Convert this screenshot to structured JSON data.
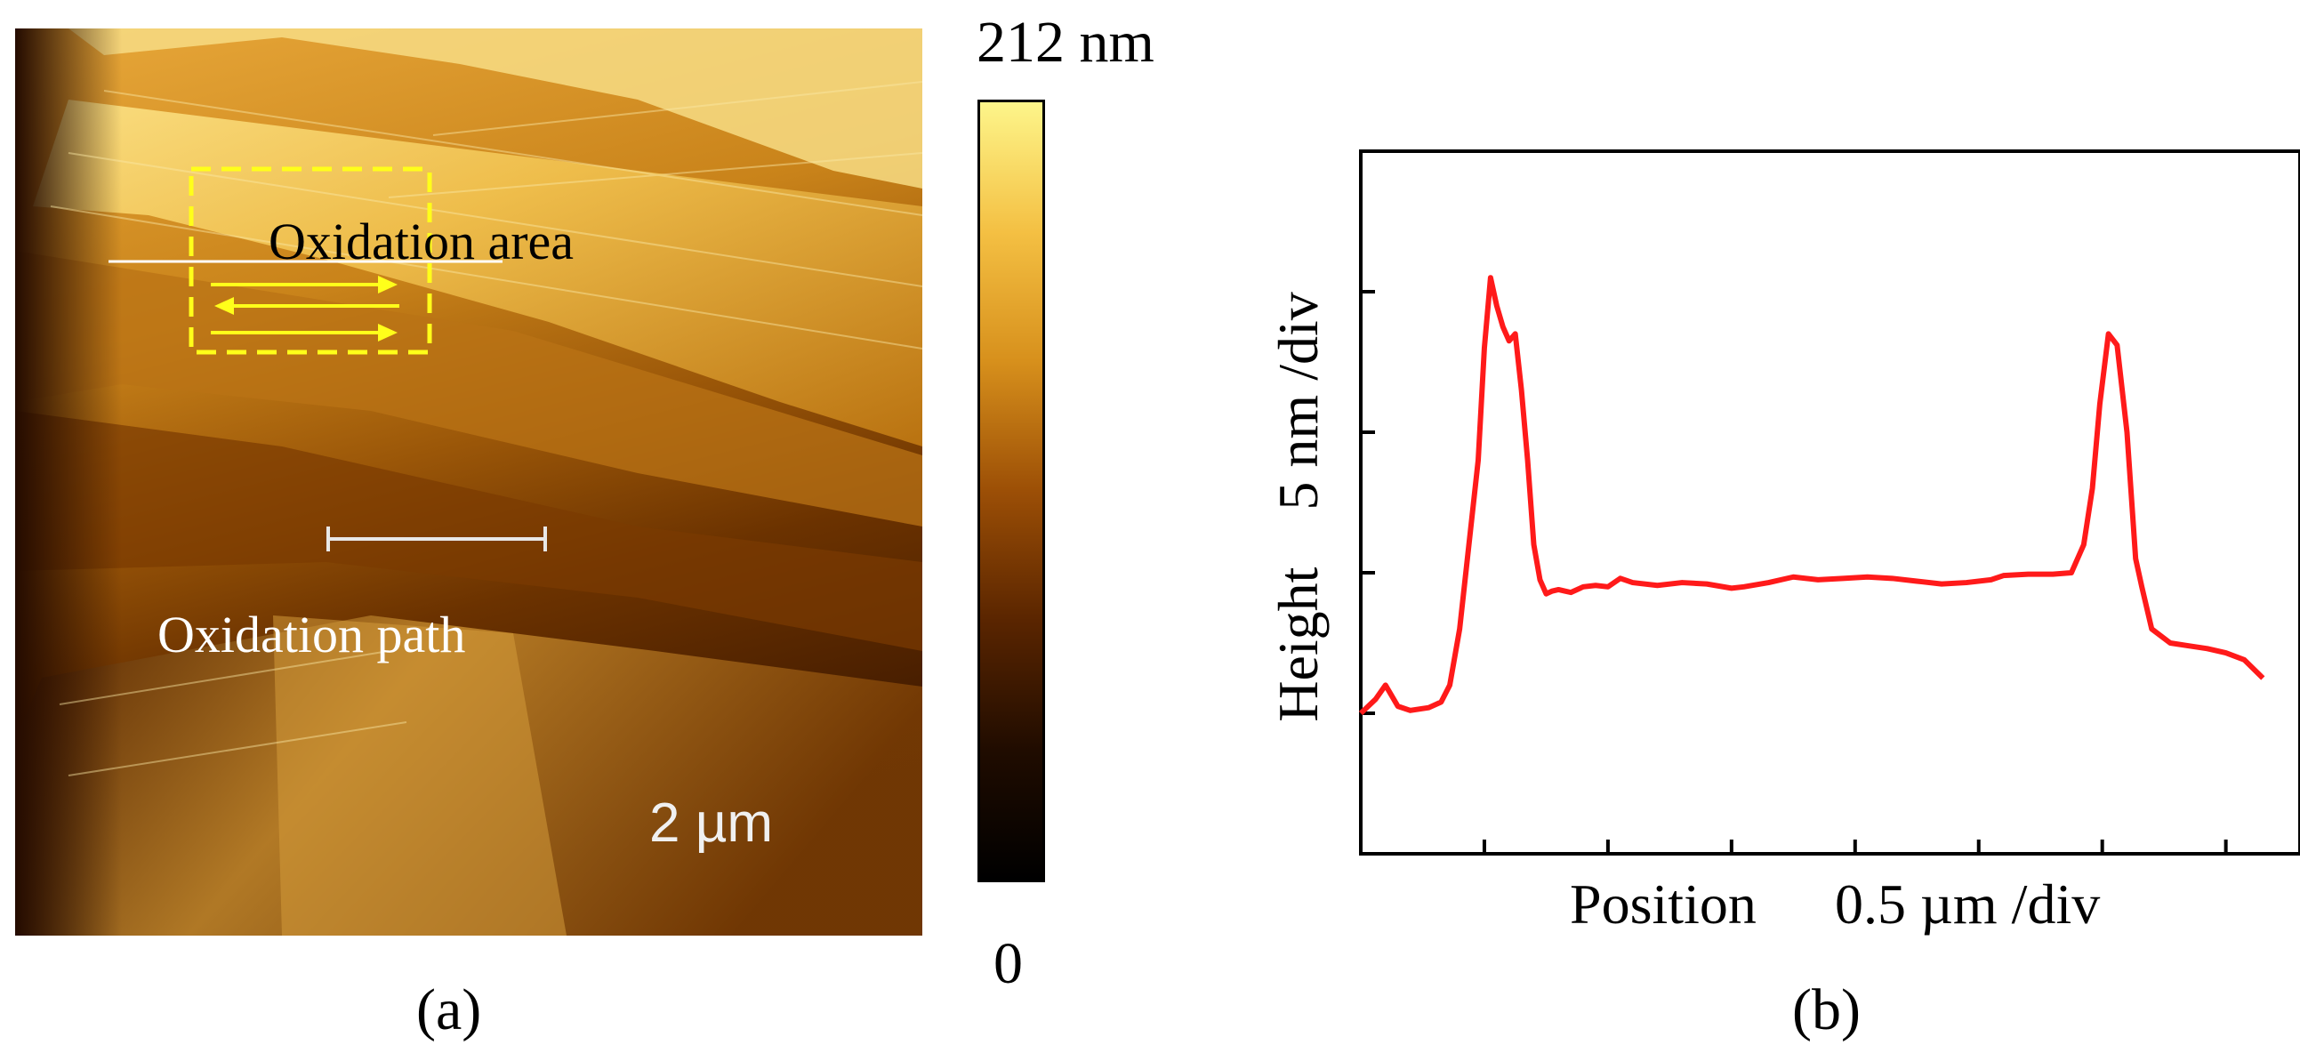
{
  "panel_a": {
    "oxidation_area_label": "Oxidation area",
    "oxidation_path_label": "Oxidation path",
    "scale_bar_label": "2 µm",
    "colorbar": {
      "max_label": "212 nm",
      "min_label": "0",
      "max_value_nm": 212,
      "min_value_nm": 0,
      "gradient_colors": [
        "#fdf58a",
        "#f4c043",
        "#d7901c",
        "#9c4f06",
        "#5a2500",
        "#200c00",
        "#000000"
      ]
    },
    "caption": "(a)",
    "annotation_colors": {
      "box": "#ffff1a",
      "arrows": "#ffff1a",
      "line_cut": "#ffffff"
    }
  },
  "panel_b": {
    "caption": "(b)",
    "xlabel_name": "Position",
    "xlabel_unit": "0.5 µm /div",
    "ylabel": "Height    5 nm /div",
    "line_color": "#ff1a1a"
  },
  "chart_data": {
    "type": "line",
    "title": "",
    "xlabel": "Position 0.5 µm /div",
    "ylabel": "Height 5 nm /div",
    "x_unit_per_div_um": 0.5,
    "y_unit_per_div_nm": 5,
    "xlim_div": [
      0,
      7.6
    ],
    "ylim_div": [
      -1,
      4
    ],
    "xticks_div": [
      1,
      2,
      3,
      4,
      5,
      6,
      7
    ],
    "yticks_div": [
      0,
      1,
      2,
      3
    ],
    "grid": false,
    "series": [
      {
        "name": "height profile",
        "x_div": [
          0.0,
          0.12,
          0.2,
          0.3,
          0.4,
          0.55,
          0.65,
          0.72,
          0.8,
          0.85,
          0.9,
          0.95,
          1.0,
          1.05,
          1.1,
          1.15,
          1.2,
          1.25,
          1.3,
          1.35,
          1.4,
          1.45,
          1.5,
          1.55,
          1.6,
          1.65,
          1.7,
          1.8,
          1.9,
          2.0,
          2.1,
          2.2,
          2.4,
          2.6,
          2.8,
          3.0,
          3.1,
          3.3,
          3.5,
          3.7,
          3.9,
          4.1,
          4.3,
          4.5,
          4.7,
          4.9,
          5.1,
          5.2,
          5.4,
          5.6,
          5.75,
          5.85,
          5.92,
          5.98,
          6.05,
          6.12,
          6.2,
          6.27,
          6.32,
          6.4,
          6.55,
          6.7,
          6.85,
          7.0,
          7.15,
          7.3
        ],
        "y_div": [
          0.0,
          0.1,
          0.2,
          0.05,
          0.02,
          0.04,
          0.08,
          0.2,
          0.6,
          1.0,
          1.4,
          1.8,
          2.6,
          3.1,
          2.9,
          2.75,
          2.65,
          2.7,
          2.3,
          1.8,
          1.2,
          0.95,
          0.85,
          0.87,
          0.88,
          0.87,
          0.86,
          0.9,
          0.91,
          0.9,
          0.96,
          0.93,
          0.91,
          0.93,
          0.92,
          0.89,
          0.9,
          0.93,
          0.97,
          0.95,
          0.96,
          0.97,
          0.96,
          0.94,
          0.92,
          0.93,
          0.95,
          0.98,
          0.99,
          0.99,
          1.0,
          1.2,
          1.6,
          2.2,
          2.7,
          2.62,
          2.0,
          1.1,
          0.9,
          0.6,
          0.5,
          0.48,
          0.46,
          0.43,
          0.38,
          0.25
        ]
      }
    ]
  }
}
